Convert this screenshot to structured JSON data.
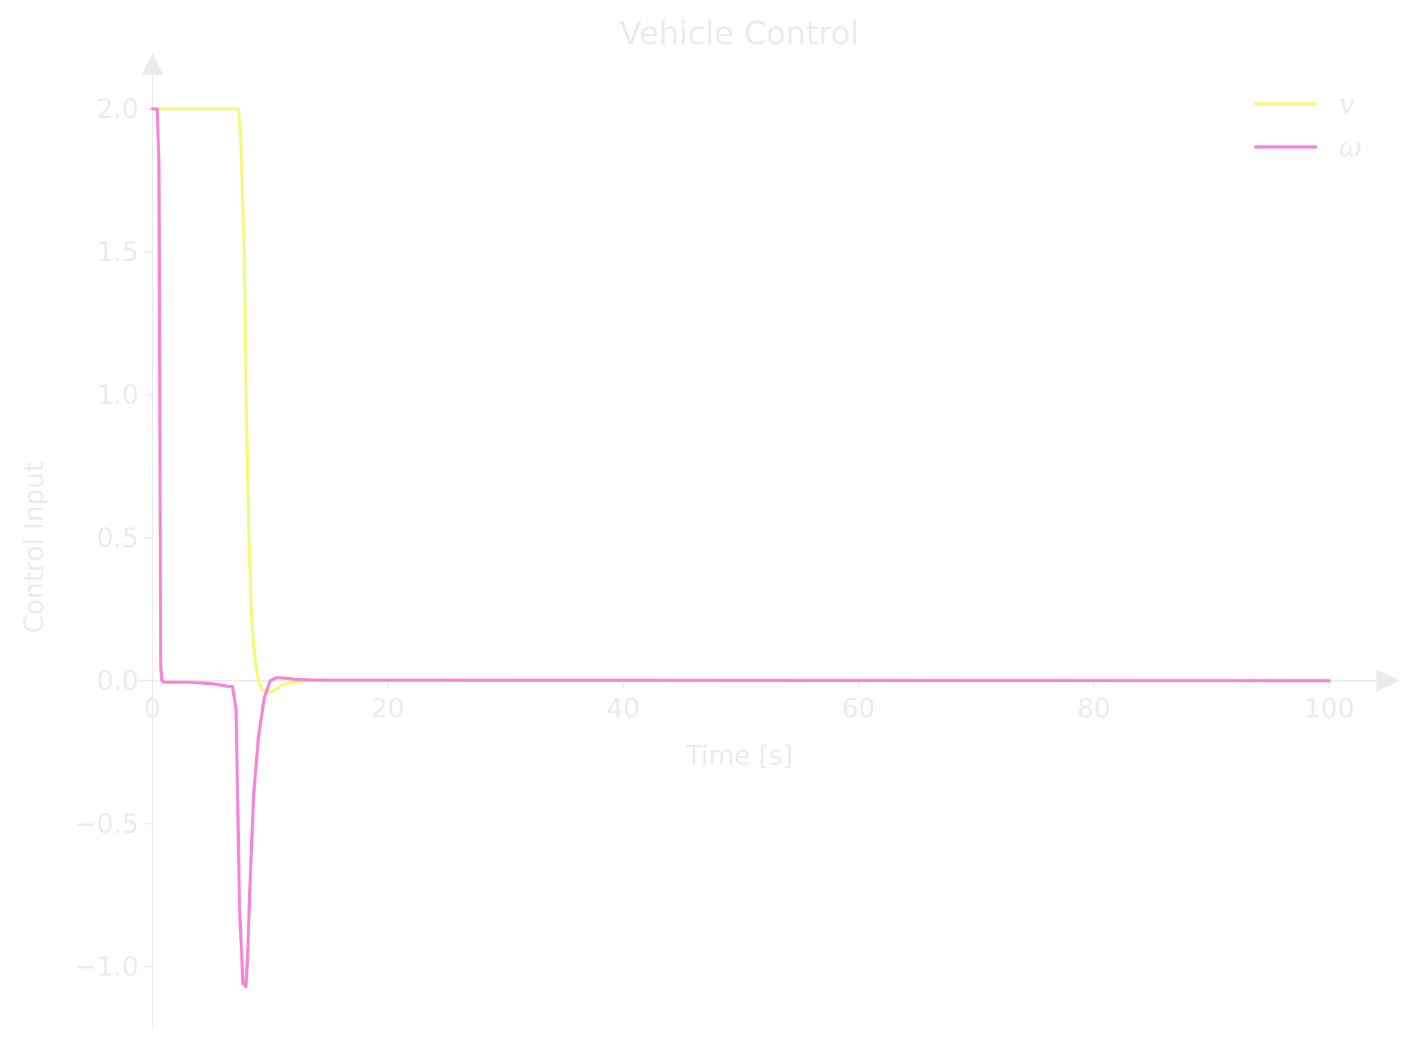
{
  "chart_data": {
    "type": "line",
    "title": "Vehicle Control",
    "xlabel": "Time [s]",
    "ylabel": "Control Input",
    "xlim": [
      0,
      105
    ],
    "ylim": [
      -1.22,
      2.1
    ],
    "xticks": [
      0,
      20,
      40,
      60,
      80,
      100
    ],
    "yticks": [
      -1.0,
      -0.5,
      0.0,
      0.5,
      1.0,
      1.5,
      2.0
    ],
    "xtick_labels": [
      "0",
      "20",
      "40",
      "60",
      "80",
      "100"
    ],
    "ytick_labels": [
      "−1.0",
      "−0.5",
      "0.0",
      "0.5",
      "1.0",
      "1.5",
      "2.0"
    ],
    "grid": false,
    "legend_position": "top-right",
    "series": [
      {
        "name": "v",
        "color": "#f7f77a",
        "x": [
          0,
          7.3,
          7.5,
          7.8,
          8.0,
          8.2,
          8.4,
          8.6,
          8.8,
          9.0,
          9.3,
          9.6,
          10.0,
          10.5,
          11.0,
          12.0,
          13.0,
          14.0,
          16.0,
          100
        ],
        "y": [
          2.0,
          2.0,
          1.9,
          1.5,
          0.9,
          0.5,
          0.25,
          0.12,
          0.05,
          0.0,
          -0.03,
          -0.04,
          -0.04,
          -0.03,
          -0.015,
          -0.005,
          0.0,
          0.0,
          0.0,
          0.0
        ]
      },
      {
        "name": "ω",
        "color": "#f783d4",
        "x": [
          0,
          0.2,
          0.4,
          0.55,
          0.7,
          0.8,
          1.0,
          3.0,
          5.0,
          6.5,
          6.8,
          7.1,
          7.4,
          7.7,
          7.8,
          7.95,
          8.1,
          8.3,
          8.6,
          9.0,
          9.5,
          10.0,
          10.5,
          11.0,
          11.5,
          12.0,
          14.0,
          100
        ],
        "y": [
          2.0,
          2.0,
          2.0,
          1.82,
          0.05,
          0.0,
          -0.005,
          -0.005,
          -0.01,
          -0.02,
          -0.02,
          -0.1,
          -0.8,
          -1.06,
          -1.06,
          -1.07,
          -0.95,
          -0.7,
          -0.4,
          -0.2,
          -0.06,
          0.0,
          0.01,
          0.01,
          0.008,
          0.005,
          0.002,
          0.0
        ]
      }
    ]
  }
}
